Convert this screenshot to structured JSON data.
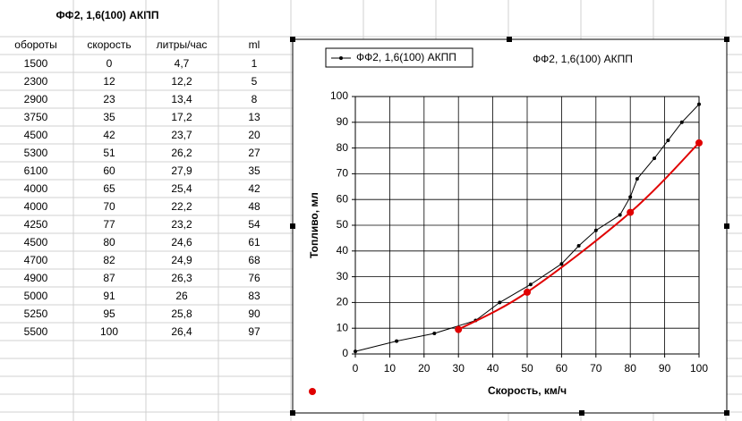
{
  "sheet": {
    "title": "ФФ2,  1,6(100) АКПП",
    "columns": [
      "обороты",
      "скорость",
      "литры/час",
      "ml"
    ],
    "rows": [
      [
        "1500",
        "0",
        "4,7",
        "1"
      ],
      [
        "2300",
        "12",
        "12,2",
        "5"
      ],
      [
        "2900",
        "23",
        "13,4",
        "8"
      ],
      [
        "3750",
        "35",
        "17,2",
        "13"
      ],
      [
        "4500",
        "42",
        "23,7",
        "20"
      ],
      [
        "5300",
        "51",
        "26,2",
        "27"
      ],
      [
        "6100",
        "60",
        "27,9",
        "35"
      ],
      [
        "4000",
        "65",
        "25,4",
        "42"
      ],
      [
        "4000",
        "70",
        "22,2",
        "48"
      ],
      [
        "4250",
        "77",
        "23,2",
        "54"
      ],
      [
        "4500",
        "80",
        "24,6",
        "61"
      ],
      [
        "4700",
        "82",
        "24,9",
        "68"
      ],
      [
        "4900",
        "87",
        "26,3",
        "76"
      ],
      [
        "5000",
        "91",
        "26",
        "83"
      ],
      [
        "5250",
        "95",
        "25,8",
        "90"
      ],
      [
        "5500",
        "100",
        "26,4",
        "97"
      ]
    ]
  },
  "chart_data": {
    "type": "line",
    "title": "ФФ2,  1,6(100) АКПП",
    "x_label": "Скорость, км/ч",
    "y_label": "Топливо, мл",
    "xlim": [
      0,
      100
    ],
    "xticks": [
      0,
      10,
      20,
      30,
      40,
      50,
      60,
      70,
      80,
      90,
      100
    ],
    "ylim": [
      0,
      100
    ],
    "yticks": [
      0,
      10,
      20,
      30,
      40,
      50,
      60,
      70,
      80,
      90,
      100
    ],
    "grid": true,
    "series": [
      {
        "name": "ФФ2,  1,6(100) АКПП",
        "color": "#000000",
        "smooth": false,
        "x": [
          0,
          12,
          23,
          35,
          42,
          51,
          60,
          65,
          70,
          77,
          80,
          82,
          87,
          91,
          95,
          100
        ],
        "values": [
          1,
          5,
          8,
          13,
          20,
          27,
          35,
          42,
          48,
          54,
          61,
          68,
          76,
          83,
          90,
          97
        ]
      },
      {
        "color": "#e00000",
        "smooth": true,
        "x": [
          30,
          50,
          80,
          100
        ],
        "values": [
          9.5,
          24,
          55,
          82
        ]
      }
    ]
  }
}
